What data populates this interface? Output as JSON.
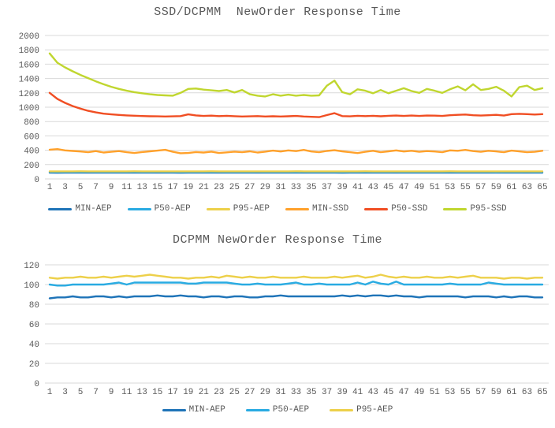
{
  "colors": {
    "text": "#595959",
    "grid": "#D9D9D9",
    "background": "#FFFFFF"
  },
  "chart_data": [
    {
      "type": "line",
      "title": "SSD/DCPMM  NewOrder Response Time",
      "xlabel": "",
      "ylabel": "",
      "grid": true,
      "legend_position": "bottom",
      "x_range": [
        1,
        65
      ],
      "x_ticks": [
        "1",
        "3",
        "5",
        "7",
        "9",
        "11",
        "13",
        "15",
        "17",
        "19",
        "21",
        "23",
        "25",
        "27",
        "29",
        "31",
        "33",
        "35",
        "37",
        "39",
        "41",
        "43",
        "45",
        "47",
        "49",
        "51",
        "53",
        "55",
        "57",
        "59",
        "61",
        "63",
        "65"
      ],
      "ylim": [
        0,
        2000
      ],
      "y_tick_step": 200,
      "series": [
        {
          "name": "MIN-AEP",
          "color": "#1F74B8",
          "values": [
            87,
            86,
            87,
            87,
            87,
            88,
            87,
            87,
            87,
            87,
            88,
            87,
            87,
            88,
            87,
            87,
            87,
            86,
            87,
            87,
            87,
            88,
            87,
            87,
            87,
            87,
            88,
            87,
            87,
            87,
            87,
            87,
            88,
            87,
            87,
            87,
            87,
            87,
            86,
            87,
            87,
            88,
            87,
            87,
            87,
            87,
            87,
            88,
            87,
            87,
            87,
            87,
            87,
            88,
            87,
            87,
            87,
            87,
            87,
            87,
            88,
            87,
            87,
            87,
            87
          ]
        },
        {
          "name": "P50-AEP",
          "color": "#29ABE2",
          "values": [
            97,
            96,
            97,
            97,
            97,
            98,
            97,
            97,
            97,
            97,
            97,
            98,
            97,
            97,
            98,
            97,
            97,
            96,
            97,
            97,
            97,
            97,
            98,
            97,
            97,
            97,
            97,
            98,
            97,
            97,
            97,
            97,
            97,
            98,
            97,
            97,
            97,
            97,
            96,
            97,
            97,
            98,
            97,
            97,
            97,
            98,
            97,
            97,
            97,
            97,
            97,
            97,
            98,
            97,
            97,
            97,
            97,
            97,
            96,
            97,
            97,
            97,
            98,
            97,
            97
          ]
        },
        {
          "name": "P95-AEP",
          "color": "#EDD04A",
          "values": [
            106,
            105,
            106,
            106,
            107,
            106,
            106,
            106,
            105,
            106,
            106,
            107,
            106,
            106,
            106,
            106,
            105,
            106,
            106,
            106,
            106,
            107,
            106,
            106,
            106,
            105,
            106,
            106,
            106,
            106,
            106,
            106,
            107,
            106,
            106,
            106,
            106,
            106,
            105,
            106,
            106,
            107,
            106,
            106,
            106,
            106,
            106,
            106,
            105,
            106,
            106,
            106,
            107,
            106,
            106,
            106,
            106,
            105,
            106,
            106,
            106,
            106,
            106,
            106,
            106
          ]
        },
        {
          "name": "MIN-SSD",
          "color": "#FFA12B",
          "values": [
            408,
            415,
            398,
            390,
            382,
            372,
            388,
            368,
            378,
            388,
            372,
            362,
            375,
            385,
            395,
            405,
            378,
            358,
            362,
            375,
            368,
            380,
            362,
            370,
            380,
            372,
            385,
            368,
            380,
            394,
            382,
            398,
            388,
            404,
            382,
            372,
            390,
            400,
            385,
            372,
            360,
            378,
            392,
            372,
            385,
            398,
            382,
            392,
            378,
            388,
            382,
            372,
            398,
            392,
            404,
            388,
            378,
            392,
            384,
            372,
            394,
            384,
            372,
            378,
            392
          ]
        },
        {
          "name": "P50-SSD",
          "color": "#F04E23",
          "values": [
            1200,
            1115,
            1060,
            1015,
            980,
            950,
            928,
            910,
            900,
            892,
            886,
            881,
            877,
            874,
            872,
            870,
            872,
            876,
            900,
            886,
            878,
            882,
            876,
            880,
            875,
            870,
            872,
            876,
            870,
            874,
            870,
            874,
            878,
            870,
            866,
            862,
            890,
            916,
            876,
            872,
            880,
            876,
            880,
            874,
            880,
            884,
            878,
            884,
            878,
            884,
            882,
            878,
            888,
            893,
            898,
            888,
            884,
            888,
            893,
            884,
            903,
            908,
            903,
            898,
            903
          ]
        },
        {
          "name": "P95-SSD",
          "color": "#C0D62F",
          "values": [
            1750,
            1620,
            1555,
            1500,
            1450,
            1405,
            1360,
            1320,
            1285,
            1255,
            1230,
            1210,
            1195,
            1180,
            1170,
            1165,
            1160,
            1200,
            1255,
            1260,
            1245,
            1235,
            1225,
            1240,
            1205,
            1240,
            1180,
            1160,
            1150,
            1180,
            1160,
            1175,
            1160,
            1170,
            1160,
            1165,
            1300,
            1370,
            1210,
            1180,
            1250,
            1230,
            1195,
            1240,
            1195,
            1230,
            1265,
            1225,
            1200,
            1255,
            1230,
            1200,
            1250,
            1290,
            1235,
            1320,
            1240,
            1255,
            1285,
            1230,
            1150,
            1280,
            1300,
            1240,
            1265
          ]
        }
      ]
    },
    {
      "type": "line",
      "title": "DCPMM NewOrder Response Time",
      "xlabel": "",
      "ylabel": "",
      "grid": true,
      "legend_position": "bottom",
      "x_range": [
        1,
        65
      ],
      "x_ticks": [
        "1",
        "3",
        "5",
        "7",
        "9",
        "11",
        "13",
        "15",
        "17",
        "19",
        "21",
        "23",
        "25",
        "27",
        "29",
        "31",
        "33",
        "35",
        "37",
        "39",
        "41",
        "43",
        "45",
        "47",
        "49",
        "51",
        "53",
        "55",
        "57",
        "59",
        "61",
        "63",
        "65"
      ],
      "ylim": [
        0,
        120
      ],
      "y_tick_step": 20,
      "series": [
        {
          "name": "MIN-AEP",
          "color": "#1F74B8",
          "values": [
            86,
            87,
            87,
            88,
            87,
            87,
            88,
            88,
            87,
            88,
            87,
            88,
            88,
            88,
            89,
            88,
            88,
            89,
            88,
            88,
            87,
            88,
            88,
            87,
            88,
            88,
            87,
            87,
            88,
            88,
            89,
            88,
            88,
            88,
            88,
            88,
            88,
            88,
            89,
            88,
            89,
            88,
            89,
            89,
            88,
            89,
            88,
            88,
            87,
            88,
            88,
            88,
            88,
            88,
            87,
            88,
            88,
            88,
            87,
            88,
            87,
            88,
            88,
            87,
            87
          ]
        },
        {
          "name": "P50-AEP",
          "color": "#29ABE2",
          "values": [
            100,
            99,
            99,
            100,
            100,
            100,
            100,
            100,
            101,
            102,
            100,
            102,
            102,
            102,
            102,
            102,
            102,
            102,
            101,
            101,
            102,
            102,
            102,
            102,
            101,
            100,
            100,
            101,
            100,
            100,
            100,
            101,
            102,
            100,
            100,
            101,
            100,
            100,
            100,
            100,
            102,
            100,
            103,
            101,
            100,
            103,
            100,
            100,
            100,
            100,
            100,
            100,
            101,
            100,
            100,
            100,
            100,
            102,
            101,
            100,
            100,
            100,
            100,
            100,
            100
          ]
        },
        {
          "name": "P95-AEP",
          "color": "#EDD04A",
          "values": [
            107,
            106,
            107,
            107,
            108,
            107,
            107,
            108,
            107,
            108,
            109,
            108,
            109,
            110,
            109,
            108,
            107,
            107,
            106,
            107,
            107,
            108,
            107,
            109,
            108,
            107,
            108,
            107,
            107,
            108,
            107,
            107,
            107,
            108,
            107,
            107,
            107,
            108,
            107,
            108,
            109,
            107,
            108,
            110,
            108,
            107,
            108,
            107,
            107,
            108,
            107,
            107,
            108,
            107,
            108,
            109,
            107,
            107,
            107,
            106,
            107,
            107,
            106,
            107,
            107
          ]
        }
      ]
    }
  ]
}
